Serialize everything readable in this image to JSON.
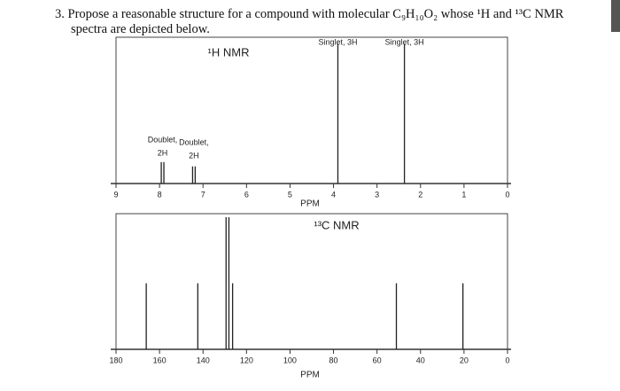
{
  "question": [
    "3. Propose a reasonable structure for a compound with molecular C₉H₁₀O₂ whose ¹H and ¹³C NMR",
    "spectra are depicted below."
  ],
  "chart_data": [
    {
      "type": "stem",
      "title": "¹H NMR",
      "xlabel": "PPM",
      "x": [
        7.96,
        7.9,
        7.24,
        7.18,
        3.9,
        2.37
      ],
      "values": [
        15,
        15,
        12,
        12,
        98,
        98
      ],
      "xlim": [
        9,
        0
      ],
      "xticks": [
        9,
        8,
        7,
        6,
        5,
        4,
        3,
        2,
        1,
        0
      ],
      "ylim": [
        0,
        100
      ],
      "color": "#222",
      "annotations": [
        {
          "lines": [
            "Doublet,",
            "2H"
          ],
          "x": 7.93
        },
        {
          "lines": [
            "Doublet,",
            "2H"
          ],
          "x": 7.21
        },
        {
          "lines": [
            "Singlet, 3H"
          ],
          "x": 3.9
        },
        {
          "lines": [
            "Singlet, 3H"
          ],
          "x": 2.37
        }
      ]
    },
    {
      "type": "stem",
      "title": "¹³C NMR",
      "xlabel": "PPM",
      "x": [
        166.1,
        142.4,
        129.4,
        128.1,
        126.4,
        51.1,
        20.5
      ],
      "values": [
        50,
        50,
        100,
        100,
        50,
        50,
        50
      ],
      "xlim": [
        180,
        0
      ],
      "xticks": [
        180,
        160,
        140,
        120,
        100,
        80,
        60,
        40,
        20,
        0
      ],
      "ylim": [
        0,
        100
      ],
      "color": "#222"
    }
  ]
}
